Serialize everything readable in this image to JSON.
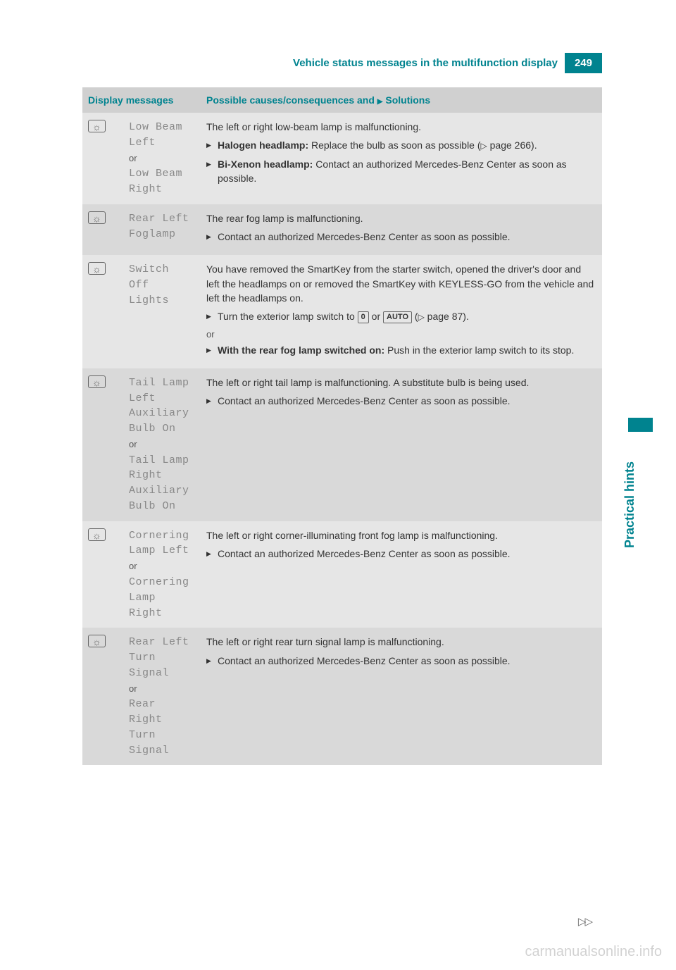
{
  "header": {
    "title": "Vehicle status messages in the multifunction display",
    "page_number": "249"
  },
  "side_tab": "Practical hints",
  "continue_marker": "▷▷",
  "watermark": "carmanualsonline.info",
  "table": {
    "col_display": "Display messages",
    "col_solutions_prefix": "Possible causes/consequences and ",
    "col_solutions_arrow": "▶",
    "col_solutions_suffix": " Solutions"
  },
  "rows": [
    {
      "icon": "☼",
      "msg_lines": [
        "Low Beam",
        "Left"
      ],
      "or": "or",
      "msg_lines2": [
        "Low Beam",
        "Right"
      ],
      "intro": "The left or right low-beam lamp is malfunctioning.",
      "bullets": [
        {
          "bold": "Halogen headlamp:",
          "text": " Replace the bulb as soon as possible (",
          "pref": "▷",
          "page": " page 266)."
        },
        {
          "bold": "Bi-Xenon headlamp:",
          "text": " Contact an authorized Mercedes-Benz Center as soon as possible."
        }
      ]
    },
    {
      "icon": "☼",
      "msg_lines": [
        "Rear Left",
        "Foglamp"
      ],
      "intro": "The rear fog lamp is malfunctioning.",
      "bullets": [
        {
          "text": "Contact an authorized Mercedes-Benz Center as soon as possible."
        }
      ]
    },
    {
      "icon": "☼",
      "msg_lines": [
        "Switch",
        "Off Lights"
      ],
      "intro": "You have removed the SmartKey from the starter switch, opened the driver's door and left the headlamps on or removed the SmartKey with KEYLESS-GO from the vehicle and left the headlamps on.",
      "bullets": [
        {
          "text_pre": "Turn the exterior lamp switch to ",
          "box1": "0",
          "text_mid": " or ",
          "box2": "AUTO",
          "text_post": " (",
          "pref": "▷",
          "page": " page 87)."
        }
      ],
      "middle_or": "or",
      "bullets2": [
        {
          "bold": "With the rear fog lamp switched on:",
          "text": " Push in the exterior lamp switch to its stop."
        }
      ]
    },
    {
      "icon": "☼",
      "msg_lines": [
        "Tail Lamp",
        "Left",
        "Auxiliary",
        "Bulb On"
      ],
      "or": "or",
      "msg_lines2": [
        "Tail Lamp",
        "Right",
        "Auxiliary",
        "Bulb On"
      ],
      "intro": "The left or right tail lamp is malfunctioning. A substitute bulb is being used.",
      "bullets": [
        {
          "text": "Contact an authorized Mercedes-Benz Center as soon as possible."
        }
      ]
    },
    {
      "icon": "☼",
      "msg_lines": [
        "Cornering",
        "Lamp Left"
      ],
      "or": "or",
      "msg_lines2": [
        "Cornering",
        "Lamp Right"
      ],
      "intro": "The left or right corner-illuminating front fog lamp is malfunctioning.",
      "bullets": [
        {
          "text": "Contact an authorized Mercedes-Benz Center as soon as possible."
        }
      ]
    },
    {
      "icon": "☼",
      "msg_lines": [
        "Rear Left",
        "Turn",
        "Signal"
      ],
      "or": "or",
      "msg_lines2": [
        "Rear",
        "Right",
        "Turn",
        "Signal"
      ],
      "intro": "The left or right rear turn signal lamp is malfunctioning.",
      "bullets": [
        {
          "text": "Contact an authorized Mercedes-Benz Center as soon as possible."
        }
      ]
    }
  ]
}
